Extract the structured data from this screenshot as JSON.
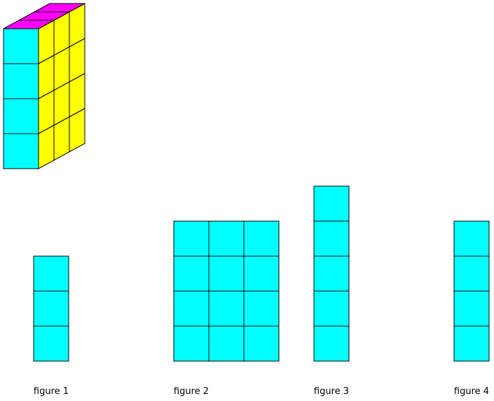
{
  "colors": {
    "front": "#00ffff",
    "side": "#ffff00",
    "top": "#ff00ff",
    "stroke": "#000000"
  },
  "solid": {
    "rows": 4,
    "cols": 1,
    "depth": 3
  },
  "figures": [
    {
      "label": "figure 1",
      "cols": 1,
      "rows": 3
    },
    {
      "label": "figure 2",
      "cols": 3,
      "rows": 4
    },
    {
      "label": "figure 3",
      "cols": 1,
      "rows": 5
    },
    {
      "label": "figure 4",
      "cols": 1,
      "rows": 4
    }
  ]
}
